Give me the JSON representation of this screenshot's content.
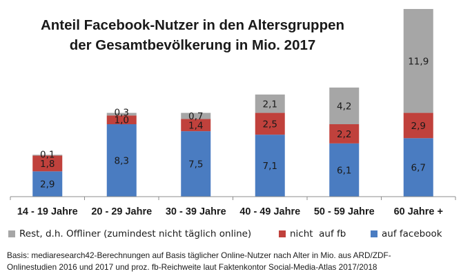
{
  "chart_data": {
    "type": "bar",
    "stacked": true,
    "title_lines": [
      "Anteil Facebook-Nutzer in den Altersgruppen",
      "der Gesamtbevölkerung in Mio. 2017"
    ],
    "categories": [
      "14 - 19 Jahre",
      "20 - 29 Jahre",
      "30 - 39 Jahre",
      "40 - 49 Jahre",
      "50 - 59 Jahre",
      "60 Jahre +"
    ],
    "series": [
      {
        "name": "auf facebook",
        "color": "#4a7cc1",
        "values": [
          2.9,
          8.3,
          7.5,
          7.1,
          6.1,
          6.7
        ],
        "labels": [
          "2,9",
          "8,3",
          "7,5",
          "7,1",
          "6,1",
          "6,7"
        ]
      },
      {
        "name": "nicht  auf fb",
        "color": "#c0413c",
        "values": [
          1.8,
          1.0,
          1.4,
          2.5,
          2.2,
          2.9
        ],
        "labels": [
          "1,8",
          "1,0",
          "1,4",
          "2,5",
          "2,2",
          "2,9"
        ]
      },
      {
        "name": "Rest, d.h. Offliner (zumindest nicht täglich online)",
        "color": "#a6a6a6",
        "values": [
          0.1,
          0.3,
          0.7,
          2.1,
          4.2,
          11.9
        ],
        "labels": [
          "0,1",
          "0,3",
          "0,7",
          "2,1",
          "4,2",
          "11,9"
        ]
      }
    ],
    "legend_order": [
      2,
      1,
      0
    ],
    "legend_position": "bottom",
    "grid": false
  },
  "source_lines": [
    "Basis: mediaresearch42-Berechnungen auf Basis täglicher Online-Nutzer nach Alter in Mio. aus ARD/ZDF-",
    "Onlinestudien 2016 und 2017 und proz. fb-Reichweite laut  Faktenkontor Social-Media-Atlas 2017/2018"
  ]
}
